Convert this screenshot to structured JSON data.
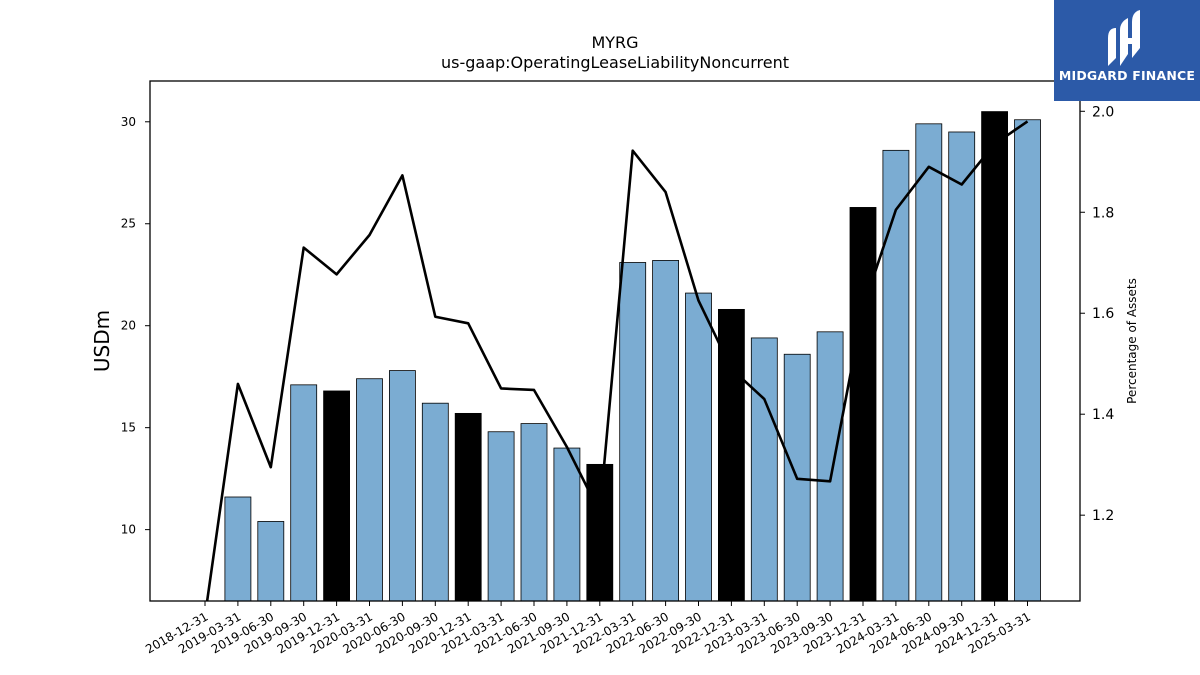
{
  "chart_data": {
    "type": "bar",
    "title": "MYRG",
    "subtitle": "us-gaap:OperatingLeaseLiabilityNoncurrent",
    "ylabel": "USDm",
    "y2label": "Percentage of Assets",
    "ylim": [
      6.5,
      32
    ],
    "y2lim": [
      1.03,
      2.06
    ],
    "yticks": [
      10,
      15,
      20,
      25,
      30
    ],
    "y2ticks": [
      1.2,
      1.4,
      1.6,
      1.8,
      2.0
    ],
    "categories": [
      "2018-12-31",
      "2019-03-31",
      "2019-06-30",
      "2019-09-30",
      "2019-12-31",
      "2020-03-31",
      "2020-06-30",
      "2020-09-30",
      "2020-12-31",
      "2021-03-31",
      "2021-06-30",
      "2021-09-30",
      "2021-12-31",
      "2022-03-31",
      "2022-06-30",
      "2022-09-30",
      "2022-12-31",
      "2023-03-31",
      "2023-06-30",
      "2023-09-30",
      "2023-12-31",
      "2024-03-31",
      "2024-06-30",
      "2024-09-30",
      "2024-12-31",
      "2025-03-31"
    ],
    "series": [
      {
        "type": "bar",
        "values": [
          null,
          11.6,
          10.4,
          17.1,
          16.8,
          17.4,
          17.8,
          16.2,
          15.7,
          14.8,
          15.2,
          14.0,
          13.2,
          23.1,
          23.2,
          21.6,
          20.8,
          19.4,
          18.6,
          19.7,
          25.8,
          28.6,
          29.9,
          29.5,
          30.5,
          30.1
        ],
        "colors": [
          "#7bacd2",
          "#7bacd2",
          "#7bacd2",
          "#7bacd2",
          "#000000",
          "#7bacd2",
          "#7bacd2",
          "#7bacd2",
          "#000000",
          "#7bacd2",
          "#7bacd2",
          "#7bacd2",
          "#000000",
          "#7bacd2",
          "#7bacd2",
          "#7bacd2",
          "#000000",
          "#7bacd2",
          "#7bacd2",
          "#7bacd2",
          "#000000",
          "#7bacd2",
          "#7bacd2",
          "#7bacd2",
          "#000000",
          "#7bacd2"
        ]
      },
      {
        "type": "line",
        "axis": "right",
        "color": "#000000",
        "values": [
          1.0,
          1.46,
          1.295,
          1.73,
          1.677,
          1.755,
          1.873,
          1.593,
          1.58,
          1.451,
          1.448,
          1.335,
          1.205,
          1.922,
          1.84,
          1.625,
          1.49,
          1.43,
          1.272,
          1.267,
          1.61,
          1.805,
          1.89,
          1.855,
          1.935,
          1.98
        ]
      }
    ],
    "grid": false
  },
  "logo": {
    "text": "MIDGARD FINANCE",
    "bg_color": "#2c5aa8"
  }
}
